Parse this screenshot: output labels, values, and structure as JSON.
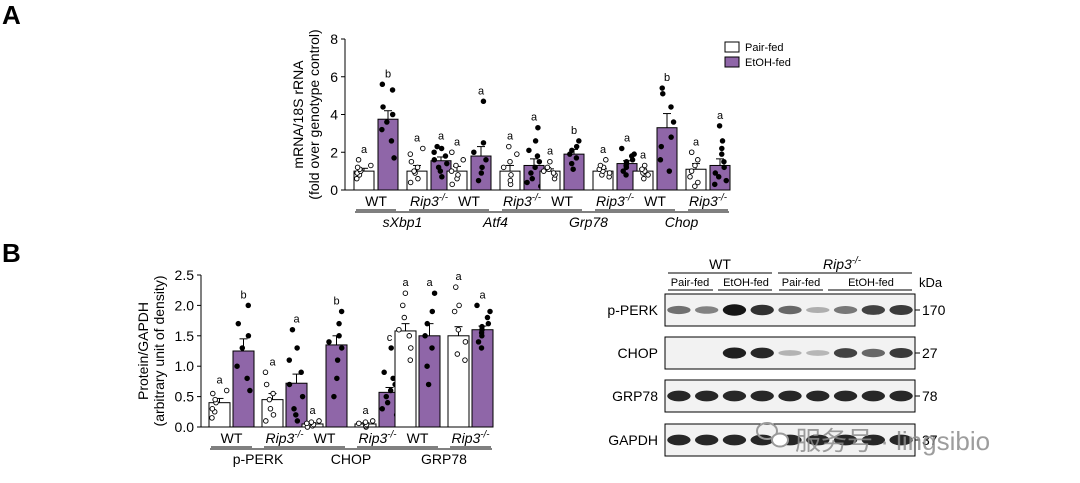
{
  "panel_a_letter": "A",
  "panel_b_letter": "B",
  "colors": {
    "pair_fed": "#ffffff",
    "etoh_fed": "#8f66a8",
    "stroke": "#000000",
    "blot_bg": "#f2f2f2",
    "band": "#111111"
  },
  "chart_data": [
    {
      "id": "A",
      "type": "bar",
      "ylabel_lines": [
        "mRNA/18S rRNA",
        "(fold over genotype control)"
      ],
      "ylim": [
        0,
        8
      ],
      "yticks": [
        "0",
        "2",
        "4",
        "6",
        "8"
      ],
      "legend": [
        {
          "name": "Pair-fed",
          "color": "#ffffff"
        },
        {
          "name": "EtOH-fed",
          "color": "#8f66a8"
        }
      ],
      "legend_position": "top-right",
      "genotype_labels": [
        "WT",
        "Rip3",
        "-/-"
      ],
      "groups": [
        {
          "gene": "sXbp1",
          "bars": [
            {
              "genotype": "WT",
              "diet": "Pair-fed",
              "value": 1.0,
              "error": 0.15,
              "letter": "a",
              "points": [
                0.6,
                0.8,
                0.9,
                1.0,
                1.1,
                1.2,
                1.3,
                1.6
              ]
            },
            {
              "genotype": "WT",
              "diet": "EtOH-fed",
              "value": 3.75,
              "error": 0.45,
              "letter": "b",
              "points": [
                1.7,
                2.6,
                3.2,
                3.6,
                4.0,
                4.4,
                5.3,
                5.6
              ]
            },
            {
              "genotype": "Rip3-/-",
              "diet": "Pair-fed",
              "value": 1.0,
              "error": 0.3,
              "letter": "a",
              "points": [
                0.4,
                0.6,
                0.9,
                1.0,
                1.2,
                1.5,
                1.9,
                2.2
              ]
            },
            {
              "genotype": "Rip3-/-",
              "diet": "EtOH-fed",
              "value": 1.55,
              "error": 0.2,
              "letter": "a",
              "points": [
                0.7,
                1.0,
                1.2,
                1.4,
                1.6,
                1.8,
                2.0,
                2.2,
                2.3
              ]
            }
          ]
        },
        {
          "gene": "Atf4",
          "bars": [
            {
              "genotype": "WT",
              "diet": "Pair-fed",
              "value": 1.0,
              "error": 0.25,
              "letter": "a",
              "points": [
                0.3,
                0.6,
                0.8,
                1.0,
                1.3,
                1.6,
                2.0
              ]
            },
            {
              "genotype": "WT",
              "diet": "EtOH-fed",
              "value": 1.8,
              "error": 0.5,
              "letter": "a",
              "points": [
                0.5,
                0.9,
                1.2,
                1.6,
                2.0,
                2.5,
                4.7
              ]
            },
            {
              "genotype": "Rip3-/-",
              "diet": "Pair-fed",
              "value": 1.0,
              "error": 0.3,
              "letter": "a",
              "points": [
                0.3,
                0.5,
                0.8,
                1.2,
                1.5,
                1.9,
                2.3
              ]
            },
            {
              "genotype": "Rip3-/-",
              "diet": "EtOH-fed",
              "value": 1.3,
              "error": 0.35,
              "letter": "a",
              "points": [
                0.2,
                0.4,
                0.6,
                0.9,
                1.2,
                1.5,
                1.8,
                2.1,
                2.6,
                3.3
              ]
            }
          ]
        },
        {
          "gene": "Grp78",
          "bars": [
            {
              "genotype": "WT",
              "diet": "Pair-fed",
              "value": 1.0,
              "error": 0.12,
              "letter": "a",
              "points": [
                0.6,
                0.8,
                0.9,
                1.0,
                1.1,
                1.2,
                1.5
              ]
            },
            {
              "genotype": "WT",
              "diet": "EtOH-fed",
              "value": 1.9,
              "error": 0.25,
              "letter": "b",
              "points": [
                1.1,
                1.4,
                1.7,
                1.9,
                2.1,
                2.3,
                2.6
              ]
            },
            {
              "genotype": "Rip3-/-",
              "diet": "Pair-fed",
              "value": 1.0,
              "error": 0.12,
              "letter": "a",
              "points": [
                0.7,
                0.8,
                0.9,
                1.0,
                1.1,
                1.2,
                1.3,
                1.6
              ]
            },
            {
              "genotype": "Rip3-/-",
              "diet": "EtOH-fed",
              "value": 1.4,
              "error": 0.15,
              "letter": "a",
              "points": [
                0.8,
                1.0,
                1.2,
                1.3,
                1.4,
                1.5,
                1.6,
                1.8,
                1.9,
                2.2
              ]
            }
          ]
        },
        {
          "gene": "Chop",
          "bars": [
            {
              "genotype": "WT",
              "diet": "Pair-fed",
              "value": 1.0,
              "error": 0.12,
              "letter": "a",
              "points": [
                0.6,
                0.8,
                0.9,
                1.0,
                1.1,
                1.3
              ]
            },
            {
              "genotype": "WT",
              "diet": "EtOH-fed",
              "value": 3.3,
              "error": 0.75,
              "letter": "b",
              "points": [
                1.0,
                1.6,
                2.3,
                2.8,
                3.6,
                4.4,
                5.1,
                5.4
              ]
            },
            {
              "genotype": "Rip3-/-",
              "diet": "Pair-fed",
              "value": 1.1,
              "error": 0.3,
              "letter": "a",
              "points": [
                0.2,
                0.4,
                0.7,
                1.0,
                1.3,
                1.6,
                2.0
              ]
            },
            {
              "genotype": "Rip3-/-",
              "diet": "EtOH-fed",
              "value": 1.3,
              "error": 0.35,
              "letter": "a",
              "points": [
                0.3,
                0.5,
                0.7,
                0.9,
                1.2,
                1.5,
                1.9,
                2.2,
                2.6,
                3.4
              ]
            }
          ]
        }
      ]
    },
    {
      "id": "B",
      "type": "bar",
      "ylabel_lines": [
        "Protein/GAPDH",
        "(arbitrary unit of density)"
      ],
      "ylim": [
        0,
        2.5
      ],
      "yticks": [
        "0.0",
        "0.5",
        "1.0",
        "1.5",
        "2.0",
        "2.5"
      ],
      "genotype_labels": [
        "WT",
        "Rip3",
        "-/-"
      ],
      "groups": [
        {
          "protein": "p-PERK",
          "bars": [
            {
              "genotype": "WT",
              "diet": "Pair-fed",
              "value": 0.4,
              "error": 0.07,
              "letter": "a",
              "points": [
                0.15,
                0.25,
                0.3,
                0.4,
                0.45,
                0.55,
                0.6
              ]
            },
            {
              "genotype": "WT",
              "diet": "EtOH-fed",
              "value": 1.25,
              "error": 0.2,
              "letter": "b",
              "points": [
                0.6,
                0.8,
                1.0,
                1.3,
                1.5,
                1.7,
                2.0
              ]
            },
            {
              "genotype": "Rip3-/-",
              "diet": "Pair-fed",
              "value": 0.45,
              "error": 0.1,
              "letter": "a",
              "points": [
                0.1,
                0.2,
                0.3,
                0.45,
                0.55,
                0.7,
                0.9
              ]
            },
            {
              "genotype": "Rip3-/-",
              "diet": "EtOH-fed",
              "value": 0.72,
              "error": 0.15,
              "letter": "a",
              "points": [
                0.1,
                0.2,
                0.3,
                0.5,
                0.7,
                0.9,
                1.1,
                1.3,
                1.6
              ]
            }
          ]
        },
        {
          "protein": "CHOP",
          "bars": [
            {
              "genotype": "WT",
              "diet": "Pair-fed",
              "value": 0.05,
              "error": 0.02,
              "letter": "a",
              "points": [
                0.0,
                0.02,
                0.04,
                0.06,
                0.08,
                0.1
              ]
            },
            {
              "genotype": "WT",
              "diet": "EtOH-fed",
              "value": 1.35,
              "error": 0.15,
              "letter": "b",
              "points": [
                0.5,
                0.8,
                1.1,
                1.3,
                1.4,
                1.5,
                1.7,
                1.9
              ]
            },
            {
              "genotype": "Rip3-/-",
              "diet": "Pair-fed",
              "value": 0.05,
              "error": 0.02,
              "letter": "a",
              "points": [
                0.0,
                0.02,
                0.04,
                0.06,
                0.08,
                0.1
              ]
            },
            {
              "genotype": "Rip3-/-",
              "diet": "EtOH-fed",
              "value": 0.57,
              "error": 0.08,
              "letter": "c",
              "points": [
                0.2,
                0.3,
                0.4,
                0.5,
                0.6,
                0.7,
                0.8,
                0.9,
                1.3
              ]
            }
          ]
        },
        {
          "protein": "GRP78",
          "bars": [
            {
              "genotype": "WT",
              "diet": "Pair-fed",
              "value": 1.58,
              "error": 0.12,
              "letter": "a",
              "points": [
                1.1,
                1.3,
                1.5,
                1.6,
                1.8,
                2.0,
                2.2
              ]
            },
            {
              "genotype": "WT",
              "diet": "EtOH-fed",
              "value": 1.5,
              "error": 0.2,
              "letter": "a",
              "points": [
                0.7,
                1.0,
                1.3,
                1.5,
                1.7,
                1.9,
                2.2
              ]
            },
            {
              "genotype": "Rip3-/-",
              "diet": "Pair-fed",
              "value": 1.5,
              "error": 0.15,
              "letter": "a",
              "points": [
                1.1,
                1.2,
                1.4,
                1.6,
                1.9,
                2.0,
                2.3
              ]
            },
            {
              "genotype": "Rip3-/-",
              "diet": "EtOH-fed",
              "value": 1.6,
              "error": 0.06,
              "letter": "a",
              "points": [
                1.3,
                1.4,
                1.5,
                1.55,
                1.6,
                1.65,
                1.7,
                1.8,
                1.9,
                2.0
              ]
            }
          ]
        }
      ]
    }
  ],
  "blot": {
    "genotypes": [
      "WT",
      "Rip3",
      "-/-"
    ],
    "diets": [
      "Pair-fed",
      "EtOH-fed",
      "Pair-fed",
      "EtOH-fed"
    ],
    "kda_label": "kDa",
    "rows": [
      {
        "name": "p-PERK",
        "kda": "170",
        "intensities": [
          0.5,
          0.4,
          1.0,
          0.85,
          0.55,
          0.15,
          0.45,
          0.75,
          0.8
        ]
      },
      {
        "name": "CHOP",
        "kda": "27",
        "intensities": [
          0.0,
          0.0,
          0.95,
          0.9,
          0.12,
          0.1,
          0.75,
          0.55,
          0.8
        ]
      },
      {
        "name": "GRP78",
        "kda": "78",
        "intensities": [
          0.9,
          0.9,
          0.9,
          0.9,
          0.9,
          0.9,
          0.9,
          0.9,
          0.9
        ]
      },
      {
        "name": "GAPDH",
        "kda": "37",
        "intensities": [
          0.9,
          0.9,
          0.9,
          0.9,
          0.9,
          0.9,
          0.9,
          0.9,
          0.9
        ]
      }
    ]
  },
  "watermark": "服务号 · lingsibio"
}
